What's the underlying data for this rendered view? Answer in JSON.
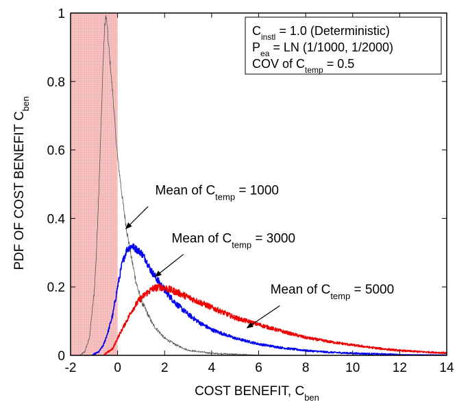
{
  "chart_data": {
    "type": "line",
    "xlabel": {
      "main": "COST BENEFIT, C",
      "sub": "ben"
    },
    "ylabel": {
      "main": "PDF OF COST BENEFIT C",
      "sub": "ben"
    },
    "xlim": [
      -2,
      14
    ],
    "ylim": [
      0,
      1
    ],
    "xticks": [
      -2,
      0,
      2,
      4,
      6,
      8,
      10,
      12,
      14
    ],
    "yticks": [
      0,
      0.2,
      0.4,
      0.6,
      0.8,
      1
    ],
    "xtick_labels": [
      "-2",
      "0",
      "2",
      "4",
      "6",
      "8",
      "10",
      "12",
      "14"
    ],
    "ytick_labels": [
      "0",
      "0.2",
      "0.4",
      "0.6",
      "0.8",
      "1"
    ],
    "shaded_region": {
      "x_from": -2,
      "x_to": 0,
      "color": "#f4b6b6"
    },
    "legend_box": {
      "placement": "top-right",
      "lines": [
        {
          "pre": "C",
          "sub": "instl",
          "post": " = 1.0 (Deterministic)"
        },
        {
          "pre": "P",
          "sub": "ea",
          "post": " = LN (1/1000, 1/2000)"
        },
        {
          "pre": "COV of C",
          "sub": "temp",
          "post": " = 0.5"
        }
      ]
    },
    "series": [
      {
        "color": "#555555",
        "points": [
          [
            -1.6,
            0
          ],
          [
            -1.4,
            0.01
          ],
          [
            -1.2,
            0.05
          ],
          [
            -1.0,
            0.18
          ],
          [
            -0.9,
            0.3
          ],
          [
            -0.8,
            0.48
          ],
          [
            -0.7,
            0.68
          ],
          [
            -0.62,
            0.85
          ],
          [
            -0.55,
            0.96
          ],
          [
            -0.5,
            0.99
          ],
          [
            -0.45,
            0.97
          ],
          [
            -0.4,
            0.92
          ],
          [
            -0.3,
            0.84
          ],
          [
            -0.2,
            0.76
          ],
          [
            -0.1,
            0.66
          ],
          [
            0,
            0.58
          ],
          [
            0.2,
            0.46
          ],
          [
            0.4,
            0.36
          ],
          [
            0.6,
            0.28
          ],
          [
            0.8,
            0.21
          ],
          [
            1.0,
            0.16
          ],
          [
            1.5,
            0.09
          ],
          [
            2.0,
            0.05
          ],
          [
            2.5,
            0.03
          ],
          [
            3.0,
            0.015
          ],
          [
            4.0,
            0.006
          ],
          [
            5.0,
            0.003
          ],
          [
            6.0,
            0.001
          ],
          [
            8.0,
            0.0
          ],
          [
            14.0,
            0.0
          ]
        ]
      },
      {
        "color": "#0000ee",
        "points": [
          [
            -1.1,
            0
          ],
          [
            -0.8,
            0.01
          ],
          [
            -0.6,
            0.03
          ],
          [
            -0.4,
            0.07
          ],
          [
            -0.2,
            0.12
          ],
          [
            0,
            0.2
          ],
          [
            0.2,
            0.27
          ],
          [
            0.4,
            0.31
          ],
          [
            0.6,
            0.32
          ],
          [
            0.8,
            0.31
          ],
          [
            1.0,
            0.3
          ],
          [
            1.2,
            0.28
          ],
          [
            1.4,
            0.25
          ],
          [
            1.6,
            0.23
          ],
          [
            2.0,
            0.19
          ],
          [
            2.5,
            0.15
          ],
          [
            3.0,
            0.12
          ],
          [
            3.5,
            0.095
          ],
          [
            4.0,
            0.075
          ],
          [
            5.0,
            0.05
          ],
          [
            6.0,
            0.033
          ],
          [
            7.0,
            0.022
          ],
          [
            8.0,
            0.014
          ],
          [
            9.0,
            0.009
          ],
          [
            10.0,
            0.006
          ],
          [
            11.0,
            0.004
          ],
          [
            12.0,
            0.002
          ],
          [
            14.0,
            0.001
          ]
        ]
      },
      {
        "color": "#ee0000",
        "points": [
          [
            -0.6,
            0
          ],
          [
            -0.2,
            0.02
          ],
          [
            0,
            0.05
          ],
          [
            0.3,
            0.09
          ],
          [
            0.6,
            0.13
          ],
          [
            0.9,
            0.16
          ],
          [
            1.2,
            0.18
          ],
          [
            1.5,
            0.195
          ],
          [
            1.8,
            0.2
          ],
          [
            2.1,
            0.195
          ],
          [
            2.5,
            0.185
          ],
          [
            3.0,
            0.17
          ],
          [
            3.5,
            0.155
          ],
          [
            4.0,
            0.14
          ],
          [
            4.5,
            0.125
          ],
          [
            5.0,
            0.11
          ],
          [
            5.5,
            0.1
          ],
          [
            6.0,
            0.09
          ],
          [
            7.0,
            0.07
          ],
          [
            8.0,
            0.052
          ],
          [
            9.0,
            0.04
          ],
          [
            10.0,
            0.03
          ],
          [
            11.0,
            0.021
          ],
          [
            12.0,
            0.014
          ],
          [
            13.0,
            0.01
          ],
          [
            14.0,
            0.007
          ]
        ]
      }
    ],
    "annotations": [
      {
        "pre": "Mean of C",
        "sub": "temp",
        "post": " = 1000",
        "text_x": 1.6,
        "text_y": 0.47,
        "arrow_from": [
          1.3,
          0.435
        ],
        "arrow_to": [
          0.35,
          0.37
        ]
      },
      {
        "pre": "Mean of C",
        "sub": "temp",
        "post": " = 3000",
        "text_x": 2.3,
        "text_y": 0.33,
        "arrow_from": [
          2.8,
          0.295
        ],
        "arrow_to": [
          1.6,
          0.23
        ]
      },
      {
        "pre": "Mean of C",
        "sub": "temp",
        "post": " = 5000",
        "text_x": 6.5,
        "text_y": 0.18,
        "arrow_from": [
          6.9,
          0.145
        ],
        "arrow_to": [
          5.5,
          0.08
        ]
      }
    ]
  }
}
